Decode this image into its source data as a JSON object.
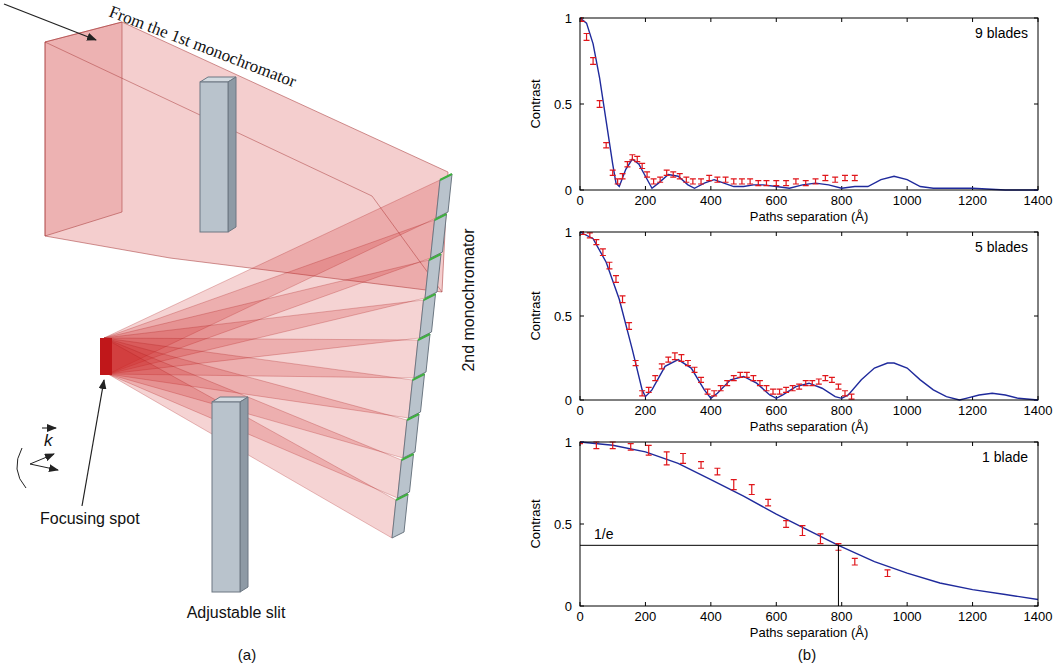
{
  "chart_data": [
    {
      "type": "line",
      "title": "9 blades",
      "x_label": "Paths separation (Å)",
      "y_label": "Contrast",
      "xlim": [
        0,
        1400
      ],
      "ylim": [
        0,
        1
      ],
      "xticks": [
        0,
        200,
        400,
        600,
        800,
        1000,
        1200,
        1400
      ],
      "yticks": [
        0,
        0.5,
        1
      ],
      "grid": false,
      "series": [
        {
          "type": "line",
          "color": "#1f2a9c",
          "line_style": "solid",
          "x": [
            0,
            20,
            40,
            60,
            80,
            100,
            110,
            120,
            140,
            160,
            180,
            200,
            220,
            240,
            270,
            300,
            330,
            350,
            380,
            410,
            440,
            470,
            500,
            530,
            560,
            600,
            640,
            680,
            720,
            760,
            800,
            840,
            880,
            920,
            960,
            1000,
            1040,
            1080,
            1120,
            1200,
            1300,
            1400
          ],
          "values": [
            1,
            0.97,
            0.85,
            0.65,
            0.4,
            0.15,
            0.04,
            0.02,
            0.12,
            0.18,
            0.15,
            0.08,
            0.01,
            0.04,
            0.09,
            0.08,
            0.03,
            0.01,
            0.04,
            0.06,
            0.04,
            0.02,
            0.02,
            0.03,
            0.03,
            0.02,
            0.01,
            0.03,
            0.04,
            0.03,
            0.01,
            0.02,
            0.02,
            0.06,
            0.08,
            0.06,
            0.02,
            0.01,
            0.01,
            0.01,
            0,
            0
          ]
        },
        {
          "type": "scatter",
          "color": "#e0161b",
          "marker": "none",
          "x": [
            5,
            20,
            40,
            60,
            80,
            100,
            115,
            130,
            145,
            160,
            175,
            190,
            205,
            225,
            245,
            265,
            285,
            305,
            325,
            345,
            370,
            395,
            420,
            445,
            470,
            495,
            520,
            545,
            570,
            600,
            630,
            660,
            690,
            720,
            750,
            780,
            810,
            840
          ],
          "values": [
            1,
            0.89,
            0.75,
            0.5,
            0.26,
            0.1,
            0.05,
            0.08,
            0.15,
            0.19,
            0.18,
            0.14,
            0.09,
            0.05,
            0.06,
            0.1,
            0.09,
            0.08,
            0.06,
            0.05,
            0.05,
            0.07,
            0.06,
            0.06,
            0.05,
            0.05,
            0.05,
            0.04,
            0.04,
            0.04,
            0.04,
            0.05,
            0.04,
            0.05,
            0.07,
            0.06,
            0.07,
            0.07
          ],
          "errors": [
            0.02,
            0.02,
            0.02,
            0.02,
            0.015,
            0.015,
            0.015,
            0.015,
            0.015,
            0.015,
            0.015,
            0.015,
            0.015,
            0.015,
            0.015,
            0.015,
            0.015,
            0.015,
            0.015,
            0.015,
            0.015,
            0.015,
            0.015,
            0.015,
            0.015,
            0.015,
            0.015,
            0.015,
            0.015,
            0.015,
            0.015,
            0.015,
            0.015,
            0.015,
            0.015,
            0.015,
            0.015,
            0.015
          ]
        }
      ]
    },
    {
      "type": "line",
      "title": "5 blades",
      "x_label": "Paths separation (Å)",
      "y_label": "Contrast",
      "xlim": [
        0,
        1400
      ],
      "ylim": [
        0,
        1
      ],
      "xticks": [
        0,
        200,
        400,
        600,
        800,
        1000,
        1200,
        1400
      ],
      "yticks": [
        0,
        0.5,
        1
      ],
      "grid": false,
      "series": [
        {
          "type": "line",
          "color": "#1f2a9c",
          "line_style": "solid",
          "x": [
            0,
            40,
            80,
            120,
            160,
            190,
            200,
            220,
            260,
            300,
            340,
            380,
            400,
            420,
            460,
            500,
            540,
            580,
            600,
            620,
            660,
            700,
            740,
            780,
            800,
            820,
            860,
            900,
            940,
            960,
            1000,
            1040,
            1080,
            1120,
            1160,
            1180,
            1220,
            1260,
            1300,
            1340,
            1400
          ],
          "values": [
            1,
            0.96,
            0.82,
            0.6,
            0.3,
            0.06,
            0.02,
            0.06,
            0.2,
            0.24,
            0.19,
            0.06,
            0.01,
            0.04,
            0.12,
            0.14,
            0.1,
            0.03,
            0.01,
            0.03,
            0.08,
            0.1,
            0.07,
            0.02,
            0.01,
            0.03,
            0.12,
            0.19,
            0.22,
            0.22,
            0.19,
            0.12,
            0.06,
            0.02,
            0,
            0.01,
            0.03,
            0.04,
            0.03,
            0.01,
            0
          ]
        },
        {
          "type": "scatter",
          "color": "#e0161b",
          "marker": "none",
          "x": [
            10,
            30,
            50,
            70,
            90,
            110,
            130,
            150,
            170,
            190,
            210,
            230,
            250,
            270,
            290,
            310,
            330,
            350,
            370,
            390,
            410,
            430,
            450,
            470,
            490,
            510,
            530,
            550,
            570,
            590,
            610,
            630,
            650,
            670,
            690,
            710,
            730,
            750,
            770,
            790,
            810,
            830
          ],
          "values": [
            1,
            0.98,
            0.94,
            0.88,
            0.8,
            0.72,
            0.6,
            0.44,
            0.22,
            0.04,
            0.06,
            0.13,
            0.2,
            0.24,
            0.26,
            0.25,
            0.22,
            0.18,
            0.12,
            0.05,
            0.04,
            0.07,
            0.1,
            0.13,
            0.15,
            0.15,
            0.13,
            0.1,
            0.07,
            0.05,
            0.05,
            0.06,
            0.07,
            0.08,
            0.1,
            0.1,
            0.11,
            0.13,
            0.12,
            0.08,
            0.04,
            0.02
          ],
          "errors": [
            0.015,
            0.015,
            0.015,
            0.02,
            0.02,
            0.02,
            0.02,
            0.02,
            0.015,
            0.015,
            0.015,
            0.015,
            0.015,
            0.015,
            0.02,
            0.02,
            0.015,
            0.015,
            0.015,
            0.015,
            0.015,
            0.015,
            0.015,
            0.015,
            0.015,
            0.015,
            0.015,
            0.015,
            0.015,
            0.015,
            0.015,
            0.015,
            0.015,
            0.015,
            0.015,
            0.015,
            0.015,
            0.015,
            0.015,
            0.015,
            0.015,
            0.015
          ]
        }
      ]
    },
    {
      "type": "line",
      "title": "1 blade",
      "x_label": "Paths separation (Å)",
      "y_label": "Contrast",
      "xlim": [
        0,
        1400
      ],
      "ylim": [
        0,
        1
      ],
      "xticks": [
        0,
        200,
        400,
        600,
        800,
        1000,
        1200,
        1400
      ],
      "yticks": [
        0,
        0.5,
        1
      ],
      "grid": false,
      "annotations": [
        {
          "text": "1/e",
          "x": 790,
          "y": 0.37
        }
      ],
      "series": [
        {
          "type": "line",
          "color": "#1f2a9c",
          "line_style": "solid",
          "x": [
            0,
            100,
            200,
            300,
            400,
            500,
            600,
            700,
            790,
            900,
            1000,
            1100,
            1200,
            1300,
            1400
          ],
          "values": [
            1,
            0.98,
            0.94,
            0.87,
            0.77,
            0.67,
            0.56,
            0.46,
            0.37,
            0.27,
            0.2,
            0.14,
            0.1,
            0.07,
            0.04
          ]
        },
        {
          "type": "scatter",
          "color": "#e0161b",
          "marker": "none",
          "x": [
            0,
            50,
            100,
            155,
            210,
            265,
            315,
            370,
            420,
            470,
            525,
            575,
            630,
            680,
            735,
            790,
            840,
            940
          ],
          "values": [
            1,
            0.98,
            0.98,
            0.97,
            0.95,
            0.9,
            0.9,
            0.86,
            0.82,
            0.74,
            0.71,
            0.63,
            0.5,
            0.46,
            0.41,
            0.36,
            0.27,
            0.2
          ],
          "errors": [
            0.01,
            0.02,
            0.02,
            0.02,
            0.03,
            0.04,
            0.03,
            0.02,
            0.02,
            0.03,
            0.03,
            0.02,
            0.02,
            0.03,
            0.03,
            0.02,
            0.02,
            0.02
          ]
        }
      ]
    }
  ],
  "diagram": {
    "incoming_label": "From the 1st monochromator",
    "monochromator_label": "2nd monochromator",
    "k_label": "k",
    "focus_label": "Focusing spot",
    "slit_label": "Adjustable slit"
  },
  "panel_labels": [
    "(a)",
    "(b)"
  ]
}
